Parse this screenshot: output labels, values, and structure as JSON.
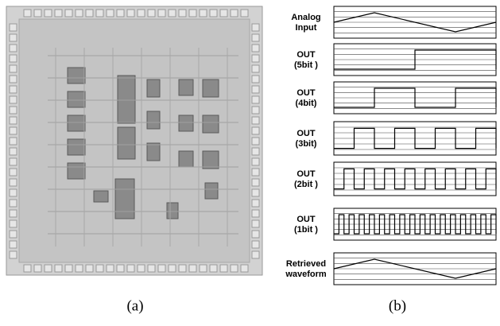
{
  "figure": {
    "panels": [
      {
        "label_lines": [
          "Analog",
          "Input"
        ]
      },
      {
        "label_lines": [
          "OUT",
          "(5bit )"
        ]
      },
      {
        "label_lines": [
          "OUT",
          "(4bit)"
        ]
      },
      {
        "label_lines": [
          "OUT",
          "(3bit)"
        ]
      },
      {
        "label_lines": [
          "OUT",
          "(2bit )"
        ]
      },
      {
        "label_lines": [
          "OUT",
          "(1bit )"
        ]
      },
      {
        "label_lines": [
          "Retrieved",
          "waveform"
        ]
      }
    ],
    "caption_a": "(a)",
    "caption_b": "(b)"
  }
}
